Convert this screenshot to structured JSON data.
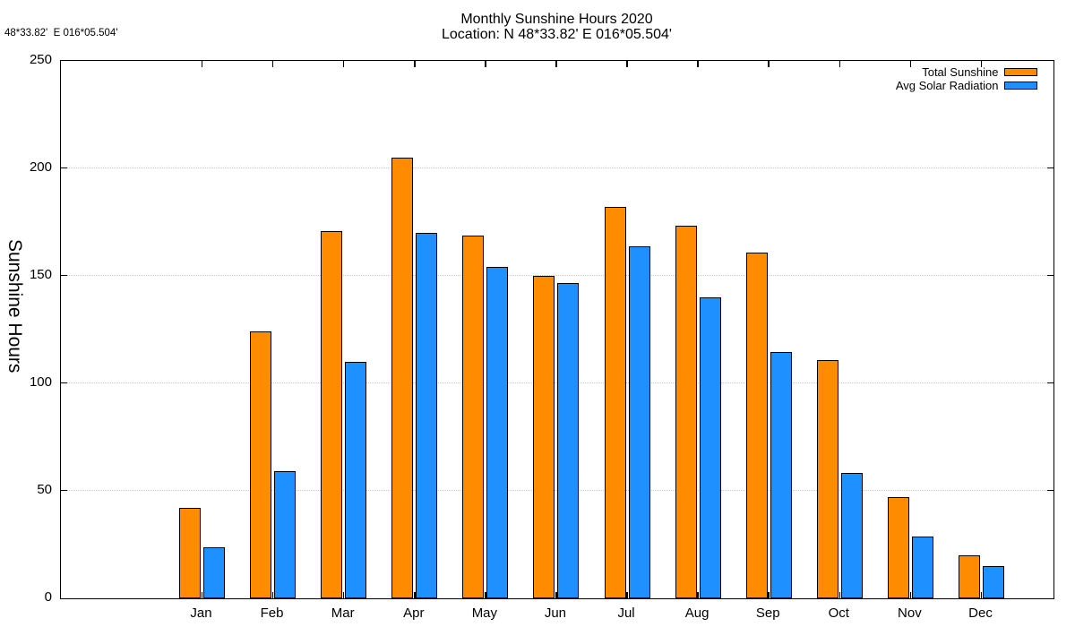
{
  "corner_text": "48*33.82'  E 016*05.504'",
  "title": {
    "line1": "Monthly Sunshine Hours 2020",
    "line2": "Location: N 48*33.82'  E 016*05.504'"
  },
  "chart_data": {
    "type": "bar",
    "title": "Monthly Sunshine Hours 2020",
    "subtitle": "Location: N 48*33.82'  E 016*05.504'",
    "xlabel": "",
    "ylabel": "Sunshine Hours",
    "ylim": [
      0,
      250
    ],
    "yticks": [
      0,
      50,
      100,
      150,
      200,
      250
    ],
    "grid": "horizontal-dotted",
    "legend_position": "top-right-inside",
    "categories": [
      "Jan",
      "Feb",
      "Mar",
      "Apr",
      "May",
      "Jun",
      "Jul",
      "Aug",
      "Sep",
      "Oct",
      "Nov",
      "Dec"
    ],
    "series": [
      {
        "name": "Total Sunshine",
        "color": "#FF8C00",
        "values": [
          42,
          124,
          170.5,
          205,
          168.5,
          150,
          182,
          173,
          160.5,
          110.5,
          47,
          20
        ]
      },
      {
        "name": "Avg Solar Radiation",
        "color": "#1E90FF",
        "values": [
          23.5,
          59,
          110,
          170,
          154,
          146.5,
          163.5,
          140,
          114.5,
          58,
          28.5,
          15
        ]
      }
    ]
  }
}
